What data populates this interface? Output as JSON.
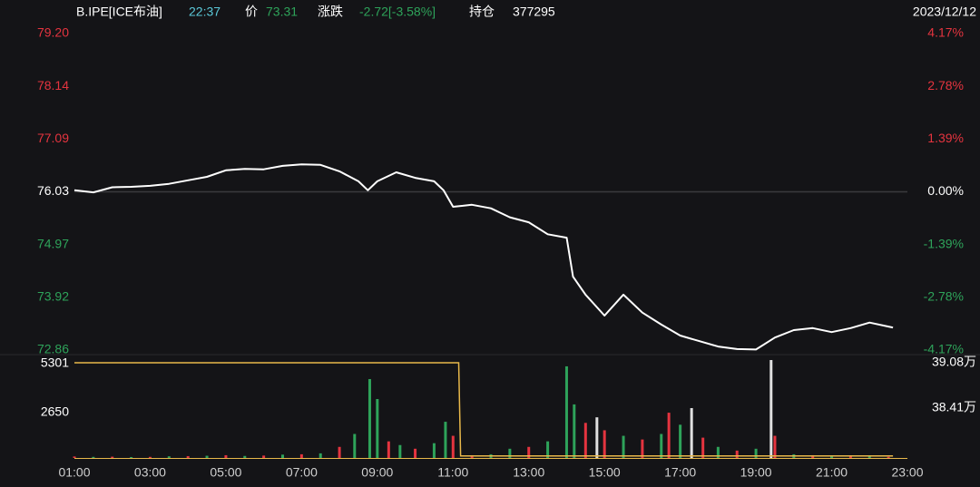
{
  "header": {
    "symbol": "B.IPE[ICE布油]",
    "time": "22:37",
    "price_label": "价",
    "price": "73.31",
    "change_label": "涨跌",
    "change": "-2.72[-3.58%]",
    "oi_label": "持仓",
    "oi": "377295",
    "date": "2023/12/12"
  },
  "chart_data": [
    {
      "type": "line",
      "x": [
        1,
        1.5,
        2,
        2.5,
        3,
        3.5,
        4,
        4.5,
        5,
        5.5,
        6,
        6.5,
        7,
        7.5,
        8,
        8.5,
        8.75,
        9,
        9.5,
        10,
        10.5,
        10.75,
        11,
        11.5,
        12,
        12.5,
        13,
        13.5,
        14,
        14.17,
        14.5,
        15,
        15.5,
        16,
        16.5,
        17,
        17.5,
        18,
        18.5,
        19,
        19.5,
        20,
        20.5,
        21,
        21.5,
        22,
        22.5,
        22.62
      ],
      "series": [
        {
          "color": "#ffffff",
          "values": [
            76.06,
            76.02,
            76.12,
            76.13,
            76.15,
            76.19,
            76.26,
            76.33,
            76.46,
            76.49,
            76.48,
            76.55,
            76.58,
            76.57,
            76.44,
            76.24,
            76.06,
            76.24,
            76.42,
            76.31,
            76.24,
            76.06,
            75.73,
            75.77,
            75.7,
            75.52,
            75.42,
            75.18,
            75.11,
            74.33,
            73.97,
            73.55,
            73.97,
            73.61,
            73.37,
            73.15,
            73.04,
            72.93,
            72.88,
            72.87,
            73.11,
            73.26,
            73.3,
            73.22,
            73.3,
            73.41,
            73.33,
            73.31
          ]
        }
      ],
      "xlim": [
        1,
        23
      ],
      "ylim": [
        72.86,
        79.2
      ],
      "yticks": [
        {
          "value": 79.2,
          "label": "79.20"
        },
        78.14,
        77.09,
        76.03,
        74.97,
        73.92,
        72.86
      ],
      "y2lim": [
        -4.17,
        4.17
      ],
      "y2ticks": [
        {
          "value": 4.17,
          "label": "4.17%"
        },
        {
          "value": 2.78,
          "label": "2.78%"
        },
        {
          "value": 1.39,
          "label": "1.39%"
        },
        {
          "value": 0,
          "label": "0.00%"
        },
        {
          "value": -1.39,
          "label": "-1.39%"
        },
        {
          "value": -2.78,
          "label": "-2.78%"
        },
        {
          "value": -4.17,
          "label": "-4.17%"
        }
      ],
      "up_color": "#e5343f",
      "down_color": "#2ea35a"
    },
    {
      "type": "bar",
      "x": [
        1,
        1.5,
        2,
        2.5,
        3,
        3.5,
        4,
        4.5,
        5,
        5.5,
        6,
        6.5,
        7,
        7.5,
        8,
        8.4,
        8.8,
        9,
        9.3,
        9.6,
        10,
        10.5,
        10.8,
        11,
        11.5,
        12,
        12.5,
        13,
        13.5,
        14,
        14.2,
        14.5,
        14.8,
        15,
        15.5,
        16,
        16.5,
        16.7,
        17,
        17.3,
        17.6,
        18,
        18.5,
        19,
        19.4,
        19.5,
        20,
        20.5,
        21,
        21.5,
        22,
        22.5
      ],
      "values": [
        80,
        60,
        70,
        50,
        60,
        90,
        100,
        120,
        150,
        110,
        130,
        180,
        200,
        250,
        600,
        1300,
        4270,
        3190,
        900,
        700,
        500,
        800,
        1960,
        1200,
        150,
        200,
        500,
        600,
        900,
        4960,
        2900,
        1900,
        2200,
        1500,
        1200,
        1000,
        1300,
        2450,
        1800,
        2700,
        1100,
        600,
        400,
        500,
        5301,
        1200,
        200,
        150,
        100,
        120,
        80,
        60
      ],
      "colors": [
        "#e5343f",
        "#2ea35a",
        "#e5343f",
        "#2ea35a",
        "#e5343f",
        "#2ea35a",
        "#e5343f",
        "#2ea35a",
        "#e5343f",
        "#2ea35a",
        "#e5343f",
        "#2ea35a",
        "#e5343f",
        "#2ea35a",
        "#e5343f",
        "#2ea35a",
        "#2ea35a",
        "#2ea35a",
        "#e5343f",
        "#2ea35a",
        "#e5343f",
        "#2ea35a",
        "#2ea35a",
        "#e5343f",
        "#e5343f",
        "#2ea35a",
        "#2ea35a",
        "#e5343f",
        "#2ea35a",
        "#2ea35a",
        "#2ea35a",
        "#e5343f",
        "#e0e0e0",
        "#e5343f",
        "#2ea35a",
        "#e5343f",
        "#2ea35a",
        "#e5343f",
        "#2ea35a",
        "#e0e0e0",
        "#e5343f",
        "#2ea35a",
        "#e5343f",
        "#2ea35a",
        "#e0e0e0",
        "#e5343f",
        "#2ea35a",
        "#e5343f",
        "#2ea35a",
        "#e5343f",
        "#2ea35a",
        "#e5343f"
      ],
      "series": [
        {
          "color": "#e8b84a",
          "axis": "y2",
          "x": [
            1,
            11.15,
            11.2,
            22.62
          ],
          "values": [
            39.08,
            39.08,
            37.7,
            37.7
          ]
        }
      ],
      "xlim": [
        1,
        23
      ],
      "xticks": [
        {
          "value": 1,
          "label": "01:00"
        },
        {
          "value": 3,
          "label": "03:00"
        },
        {
          "value": 5,
          "label": "05:00"
        },
        {
          "value": 7,
          "label": "07:00"
        },
        {
          "value": 9,
          "label": "09:00"
        },
        {
          "value": 11,
          "label": "11:00"
        },
        {
          "value": 13,
          "label": "13:00"
        },
        {
          "value": 15,
          "label": "15:00"
        },
        {
          "value": 17,
          "label": "17:00"
        },
        {
          "value": 19,
          "label": "19:00"
        },
        {
          "value": 21,
          "label": "21:00"
        },
        {
          "value": 23,
          "label": "23:00"
        }
      ],
      "ylim": [
        0,
        5301
      ],
      "yticks": [
        5301,
        2650
      ],
      "y2lim": [
        37.67,
        39.12
      ],
      "y2ticks": [
        {
          "value": 39.08,
          "label": "39.08万"
        },
        {
          "value": 38.41,
          "label": "38.41万"
        }
      ]
    }
  ]
}
